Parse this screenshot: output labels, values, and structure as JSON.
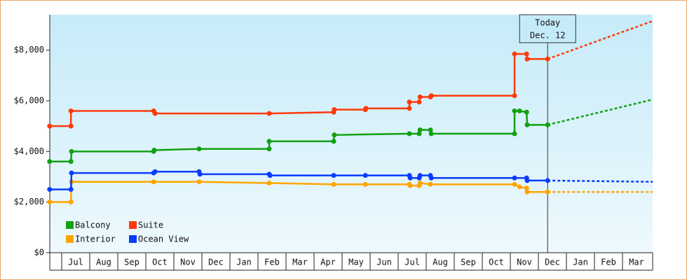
{
  "chart_data": {
    "type": "line",
    "categories": [
      "Jul",
      "Aug",
      "Sep",
      "Oct",
      "Nov",
      "Dec",
      "Jan",
      "Feb",
      "Mar",
      "Apr",
      "May",
      "Jun",
      "Jul",
      "Aug",
      "Sep",
      "Oct",
      "Nov",
      "Dec",
      "Jan",
      "Feb",
      "Mar"
    ],
    "xlim": [
      -0.425,
      21.075
    ],
    "ylim": [
      0,
      9400
    ],
    "yticks": [
      {
        "value": 0,
        "label": "$0"
      },
      {
        "value": 2000,
        "label": "$2,000"
      },
      {
        "value": 4000,
        "label": "$4,000"
      },
      {
        "value": 6000,
        "label": "$6,000"
      },
      {
        "value": 8000,
        "label": "$8,000"
      }
    ],
    "annotation": {
      "x": 17.33,
      "lines": [
        "Today",
        "Dec. 12"
      ]
    },
    "series": [
      {
        "name": "Balcony",
        "color": "#12a012",
        "x": [
          -0.43,
          0.33,
          0.35,
          3.28,
          3.3,
          4.9,
          7.4,
          7.4,
          9.7,
          9.72,
          12.4,
          12.75,
          12.78,
          13.15,
          13.18,
          16.15,
          16.15,
          16.33,
          16.58,
          16.6,
          17.33
        ],
        "values": [
          3600,
          3600,
          4000,
          4000,
          4050,
          4100,
          4100,
          4400,
          4400,
          4650,
          4700,
          4700,
          4850,
          4850,
          4700,
          4700,
          5600,
          5600,
          5550,
          5050,
          5050
        ],
        "projection": {
          "x": [
            17.33,
            21.075
          ],
          "values": [
            5050,
            6050
          ]
        }
      },
      {
        "name": "Suite",
        "color": "#ff3a0a",
        "x": [
          -0.43,
          0.33,
          0.33,
          3.28,
          3.33,
          7.4,
          9.7,
          9.72,
          10.83,
          10.85,
          12.4,
          12.4,
          12.75,
          12.78,
          13.15,
          13.18,
          16.15,
          16.15,
          16.58,
          16.6,
          17.33
        ],
        "values": [
          5000,
          5000,
          5600,
          5600,
          5500,
          5500,
          5550,
          5650,
          5650,
          5700,
          5700,
          5950,
          5950,
          6150,
          6150,
          6200,
          6200,
          7850,
          7850,
          7650,
          7650
        ],
        "projection": {
          "x": [
            17.33,
            21.075
          ],
          "values": [
            7650,
            9150
          ]
        }
      },
      {
        "name": "Interior",
        "color": "#ffa500",
        "x": [
          -0.43,
          0.33,
          0.35,
          3.28,
          4.9,
          7.4,
          9.7,
          10.83,
          12.4,
          12.43,
          12.75,
          12.78,
          13.15,
          16.15,
          16.33,
          16.58,
          16.6,
          17.33
        ],
        "values": [
          2000,
          2000,
          2800,
          2800,
          2800,
          2750,
          2700,
          2700,
          2700,
          2650,
          2650,
          2750,
          2700,
          2700,
          2600,
          2550,
          2400,
          2400
        ],
        "projection": {
          "x": [
            17.33,
            21.075
          ],
          "values": [
            2400,
            2400
          ]
        }
      },
      {
        "name": "Ocean View",
        "color": "#0a3cff",
        "x": [
          -0.43,
          0.33,
          0.35,
          3.28,
          3.33,
          4.9,
          4.93,
          7.4,
          7.43,
          9.7,
          10.83,
          12.4,
          12.43,
          12.75,
          12.78,
          13.15,
          13.18,
          16.15,
          16.58,
          16.6,
          17.33
        ],
        "values": [
          2500,
          2500,
          3150,
          3150,
          3200,
          3200,
          3100,
          3100,
          3050,
          3050,
          3050,
          3050,
          2950,
          2950,
          3050,
          3050,
          2950,
          2950,
          2950,
          2850,
          2850
        ],
        "projection": {
          "x": [
            17.33,
            21.075
          ],
          "values": [
            2850,
            2800
          ]
        }
      }
    ]
  }
}
